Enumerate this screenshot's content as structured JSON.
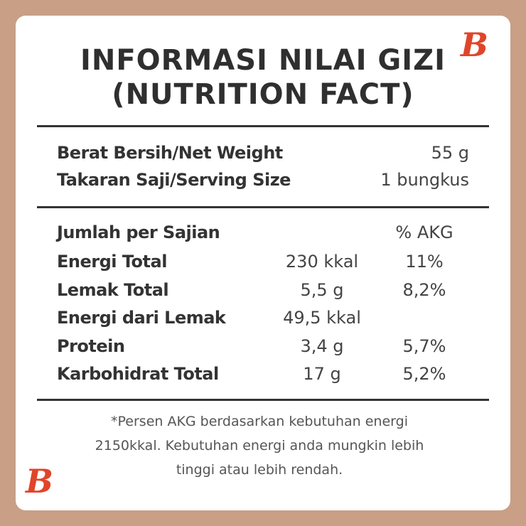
{
  "header": {
    "title": [
      "INFORMASI NILAI GIZI",
      "(NUTRITION FACT)"
    ]
  },
  "info": [
    {
      "label": "Berat Bersih/Net Weight",
      "value": "55 g"
    },
    {
      "label": "Takaran Saji/Serving Size",
      "value": "1 bungkus"
    }
  ],
  "table": {
    "header": [
      "Jumlah per Sajian",
      "% AKG"
    ],
    "rows": [
      {
        "name": "Energi Total",
        "amount": "230 kkal",
        "akg": "11%"
      },
      {
        "name": "Lemak Total",
        "amount": "5,5 g",
        "akg": "8,2%"
      },
      {
        "name": "Energi dari Lemak",
        "amount": "49,5 kkal"
      },
      {
        "name": "Protein",
        "amount": "3,4 g",
        "akg": "5,7%"
      },
      {
        "name": "Karbohidrat Total",
        "amount": "17 g",
        "akg": "5,2%"
      }
    ]
  },
  "footnote": [
    "*Persen AKG berdasarkan kebutuhan energi",
    "2150kkal. Kebutuhan energi anda mungkin lebih",
    "tinggi atau lebih rendah."
  ],
  "logos": [
    "B",
    "B"
  ]
}
